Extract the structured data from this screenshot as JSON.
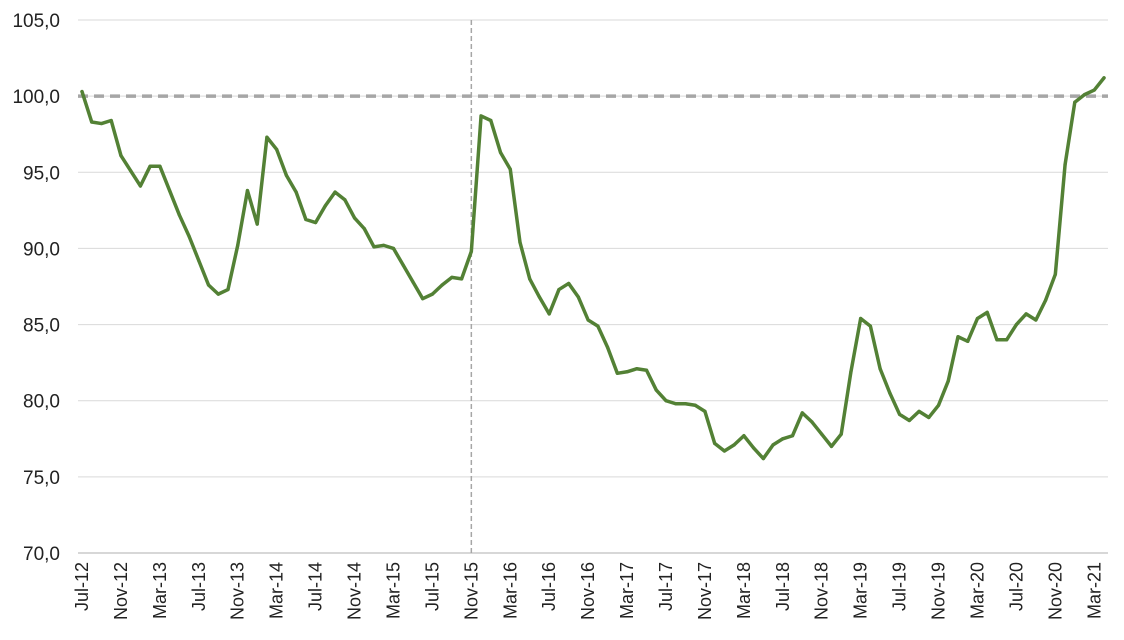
{
  "chart_data": {
    "type": "line",
    "title": "",
    "xlabel": "",
    "ylabel": "",
    "ylim": [
      70,
      105
    ],
    "y_ticks": [
      "70,0",
      "75,0",
      "80,0",
      "85,0",
      "90,0",
      "95,0",
      "100,0",
      "105,0"
    ],
    "x_tick_labels": [
      "Jul-12",
      "Nov-12",
      "Mar-13",
      "Jul-13",
      "Nov-13",
      "Mar-14",
      "Jul-14",
      "Nov-14",
      "Mar-15",
      "Jul-15",
      "Nov-15",
      "Mar-16",
      "Jul-16",
      "Nov-16",
      "Mar-17",
      "Jul-17",
      "Nov-17",
      "Mar-18",
      "Jul-18",
      "Nov-18",
      "Mar-19",
      "Jul-19",
      "Nov-19",
      "Mar-20",
      "Jul-20",
      "Nov-20",
      "Mar-21"
    ],
    "grid": "horizontal",
    "reference_line_y": 100,
    "vertical_marker_x": "Nov-15",
    "line_color": "#538135",
    "series": [
      {
        "values": [
          100.3,
          98.3,
          98.2,
          98.4,
          96.1,
          95.1,
          94.1,
          95.4,
          95.4,
          93.8,
          92.2,
          90.8,
          89.2,
          87.6,
          87.0,
          87.3,
          90.2,
          93.8,
          91.6,
          97.3,
          96.5,
          94.8,
          93.7,
          91.9,
          91.7,
          92.8,
          93.7,
          93.2,
          92.0,
          91.3,
          90.1,
          90.2,
          90.0,
          88.9,
          87.8,
          86.7,
          87.0,
          87.6,
          88.1,
          88.0,
          89.8,
          98.7,
          98.4,
          96.3,
          95.2,
          90.4,
          88.0,
          86.8,
          85.7,
          87.3,
          87.7,
          86.8,
          85.3,
          84.9,
          83.5,
          81.8,
          81.9,
          82.1,
          82.0,
          80.7,
          80.0,
          79.8,
          79.8,
          79.7,
          79.3,
          77.2,
          76.7,
          77.1,
          77.7,
          76.9,
          76.2,
          77.1,
          77.5,
          77.7,
          79.2,
          78.6,
          77.8,
          77.0,
          77.8,
          81.9,
          85.4,
          84.9,
          82.1,
          80.5,
          79.1,
          78.7,
          79.3,
          78.9,
          79.7,
          81.3,
          84.2,
          83.9,
          85.4,
          85.8,
          84.0,
          84.0,
          85.0,
          85.7,
          85.3,
          86.6,
          88.3,
          95.5,
          99.6,
          100.1,
          100.4,
          101.2
        ]
      }
    ]
  }
}
